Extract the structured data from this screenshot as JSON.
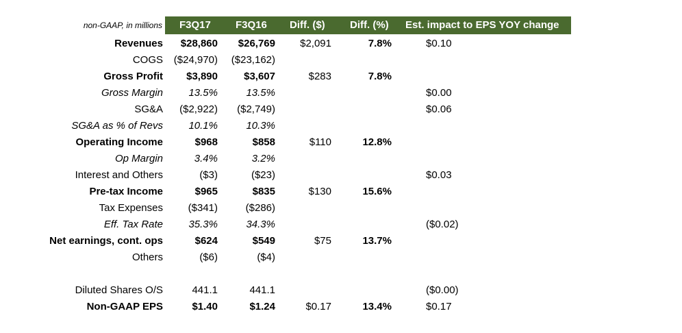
{
  "header": {
    "label": "non-GAAP, in millions",
    "columns": [
      "F3Q17",
      "F3Q16",
      "Diff. ($)",
      "Diff. (%)",
      "Est. impact to EPS YOY change"
    ]
  },
  "rows": [
    {
      "label": "Revenues",
      "f3q17": "$28,860",
      "f3q16": "$26,769",
      "diff_usd": "$2,091",
      "diff_pct": "7.8%",
      "eps_impact": "$0.10"
    },
    {
      "label": "COGS",
      "f3q17": "($24,970)",
      "f3q16": "($23,162)",
      "diff_usd": "",
      "diff_pct": "",
      "eps_impact": ""
    },
    {
      "label": "Gross Profit",
      "f3q17": "$3,890",
      "f3q16": "$3,607",
      "diff_usd": "$283",
      "diff_pct": "7.8%",
      "eps_impact": ""
    },
    {
      "label": "Gross Margin",
      "f3q17": "13.5%",
      "f3q16": "13.5%",
      "diff_usd": "",
      "diff_pct": "",
      "eps_impact": "$0.00"
    },
    {
      "label": "SG&A",
      "f3q17": "($2,922)",
      "f3q16": "($2,749)",
      "diff_usd": "",
      "diff_pct": "",
      "eps_impact": "$0.06"
    },
    {
      "label": "SG&A as % of Revs",
      "f3q17": "10.1%",
      "f3q16": "10.3%",
      "diff_usd": "",
      "diff_pct": "",
      "eps_impact": ""
    },
    {
      "label": "Operating Income",
      "f3q17": "$968",
      "f3q16": "$858",
      "diff_usd": "$110",
      "diff_pct": "12.8%",
      "eps_impact": ""
    },
    {
      "label": "Op Margin",
      "f3q17": "3.4%",
      "f3q16": "3.2%",
      "diff_usd": "",
      "diff_pct": "",
      "eps_impact": ""
    },
    {
      "label": "Interest and Others",
      "f3q17": "($3)",
      "f3q16": "($23)",
      "diff_usd": "",
      "diff_pct": "",
      "eps_impact": "$0.03"
    },
    {
      "label": "Pre-tax Income",
      "f3q17": "$965",
      "f3q16": "$835",
      "diff_usd": "$130",
      "diff_pct": "15.6%",
      "eps_impact": ""
    },
    {
      "label": "Tax Expenses",
      "f3q17": "($341)",
      "f3q16": "($286)",
      "diff_usd": "",
      "diff_pct": "",
      "eps_impact": ""
    },
    {
      "label": "Eff. Tax Rate",
      "f3q17": "35.3%",
      "f3q16": "34.3%",
      "diff_usd": "",
      "diff_pct": "",
      "eps_impact": "($0.02)"
    },
    {
      "label": "Net earnings, cont. ops",
      "f3q17": "$624",
      "f3q16": "$549",
      "diff_usd": "$75",
      "diff_pct": "13.7%",
      "eps_impact": ""
    },
    {
      "label": "Others",
      "f3q17": "($6)",
      "f3q16": "($4)",
      "diff_usd": "",
      "diff_pct": "",
      "eps_impact": ""
    },
    {
      "label": "Diluted Shares O/S",
      "f3q17": "441.1",
      "f3q16": "441.1",
      "diff_usd": "",
      "diff_pct": "",
      "eps_impact": "($0.00)"
    },
    {
      "label": "Non-GAAP EPS",
      "f3q17": "$1.40",
      "f3q16": "$1.24",
      "diff_usd": "$0.17",
      "diff_pct": "13.4%",
      "eps_impact": "$0.17"
    }
  ]
}
